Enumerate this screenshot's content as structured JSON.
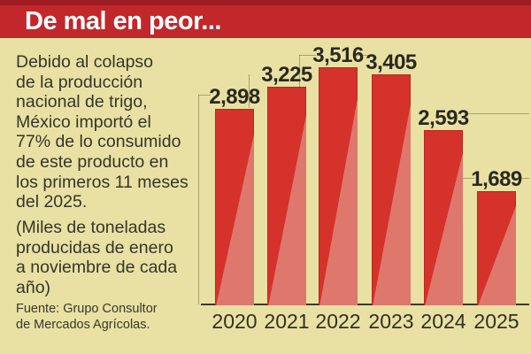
{
  "header": {
    "title": "De mal en peor...",
    "band_color": "#c2272b",
    "strip_color": "#9e1b21"
  },
  "sidebar": {
    "intro": "Debido al colapso\nde la producción\nnacional de trigo,\nMéxico importó el\n77% de lo consumido\nde este producto en\nlos primeros 11 meses\ndel 2025.",
    "note": "(Miles de toneladas\nproducidas de enero\na noviembre de cada\naño)",
    "source": "Fuente: Grupo Consultor\nde Mercados Agrícolas."
  },
  "chart_data": {
    "type": "bar",
    "title": "De mal en peor...",
    "unit_note": "Miles de toneladas producidas de enero a noviembre de cada año",
    "categories": [
      "2020",
      "2021",
      "2022",
      "2023",
      "2024",
      "2025"
    ],
    "values": [
      2898,
      3225,
      3516,
      3405,
      2593,
      1689
    ],
    "value_labels": [
      "2,898",
      "3,225",
      "3,516",
      "3,405",
      "2,593",
      "1,689"
    ],
    "xlabel": "",
    "ylabel": "",
    "ylim": [
      0,
      3700
    ],
    "grid": false,
    "legend": false,
    "background_color": "#e8e1a3",
    "bar_color": "#d5322b",
    "bar_highlight_color": "#de786c",
    "label_color": "#2b2820",
    "axis_color": "#3e392b"
  }
}
